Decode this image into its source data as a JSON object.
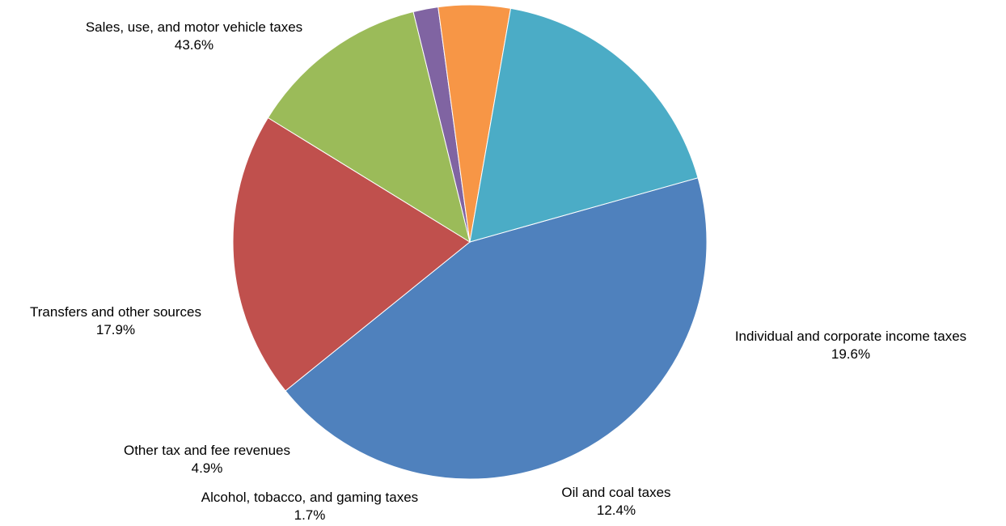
{
  "chart_data": {
    "type": "pie",
    "title": "",
    "start_angle_deg": 74.3,
    "direction": "clockwise",
    "legend": "none",
    "slices": [
      {
        "label": "Sales, use, and motor vehicle taxes",
        "value": 43.6,
        "value_label": "43.6%",
        "color": "#4F81BD"
      },
      {
        "label": "Individual and corporate income taxes",
        "value": 19.6,
        "value_label": "19.6%",
        "color": "#C0504D"
      },
      {
        "label": "Oil and coal taxes",
        "value": 12.4,
        "value_label": "12.4%",
        "color": "#9BBB59"
      },
      {
        "label": "Alcohol, tobacco, and gaming taxes",
        "value": 1.7,
        "value_label": "1.7%",
        "color": "#8064A2"
      },
      {
        "label": "Other tax and fee revenues",
        "value": 4.9,
        "value_label": "4.9%",
        "color": "#F79646"
      },
      {
        "label": "Transfers and other sources",
        "value": 17.9,
        "value_label": "17.9%",
        "color": "#4BACC6"
      }
    ]
  }
}
